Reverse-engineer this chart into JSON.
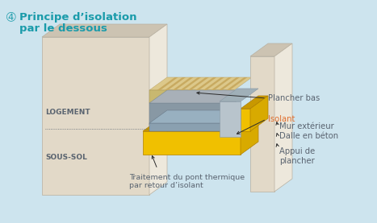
{
  "bg_color": "#cde4ee",
  "title_number": "➃",
  "title_line1": "Principe d’isolation",
  "title_line2": "par le dessous",
  "title_color": "#1a9baa",
  "label_color": "#5a6470",
  "isolant_label_color": "#e07030",
  "labels": {
    "plancher_bas": "Plancher bas",
    "isolant": "Isolant",
    "mur_exterieur": "Mur extérieur",
    "dalle_beton": "Dalle en béton",
    "appui_plancher": "Appui de\nplancher",
    "traitement": "Traitement du pont thermique\npar retour d’isolant",
    "logement": "LOGEMENT",
    "sous_sol": "SOUS-SOL"
  },
  "colors": {
    "wall_front": "#e2d9c8",
    "wall_top": "#ccc3b2",
    "wall_right": "#ede8dc",
    "floor_wood1": "#dcc88a",
    "floor_wood2": "#c8aa60",
    "floor_front": "#c8b870",
    "insul_yellow": "#f0c000",
    "insul_yellow_top": "#c89800",
    "insul_yellow_right": "#d8aa00",
    "concrete_top": "#a8b0b8",
    "concrete_front": "#8898a4",
    "support_front": "#b8c4cc",
    "support_top": "#a0b0b8",
    "gray_layer": "#8aA0b0",
    "arrow": "#2a2a2a"
  }
}
